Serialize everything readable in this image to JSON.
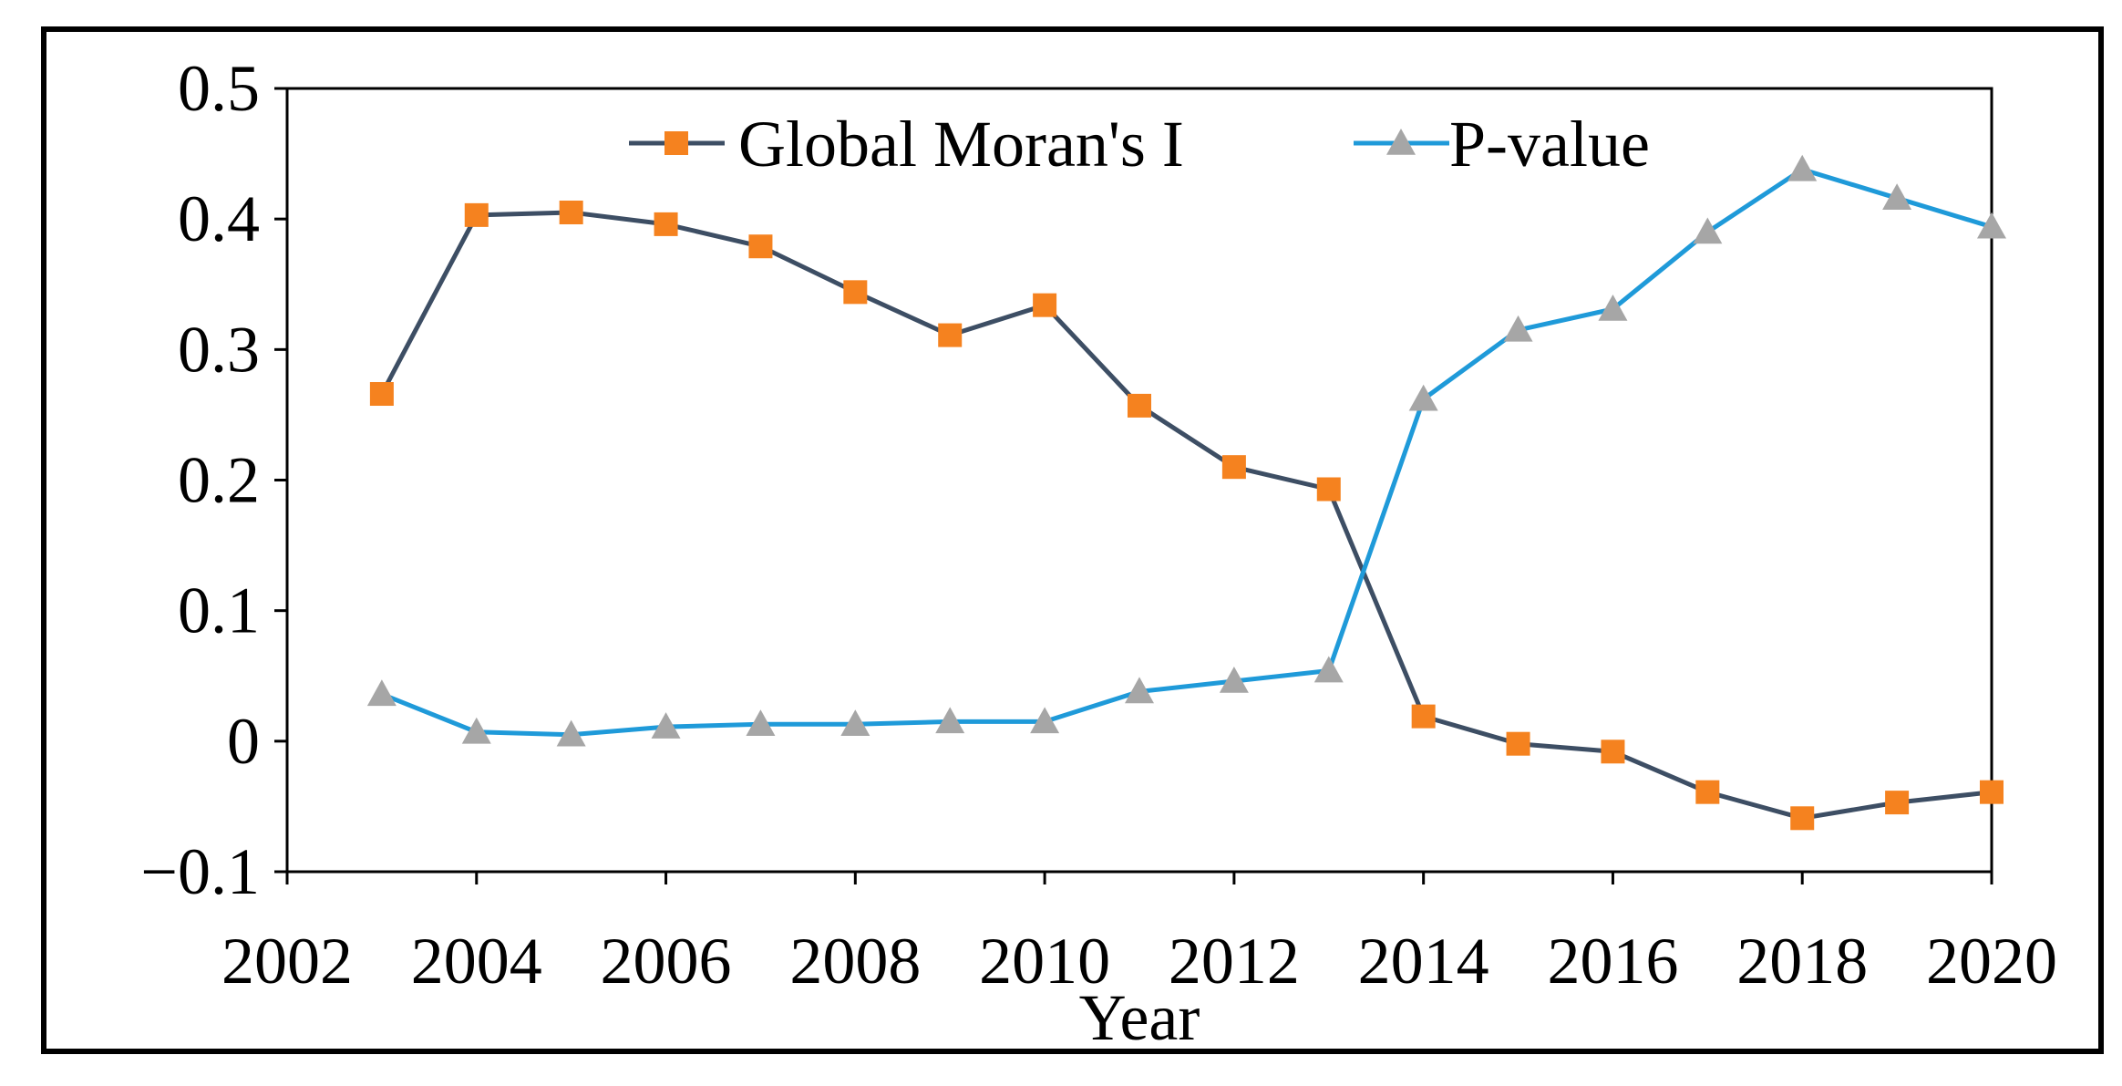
{
  "chart_data": {
    "type": "line",
    "title": "",
    "xlabel": "Year",
    "ylabel": "",
    "xlim": [
      2002,
      2020
    ],
    "ylim": [
      -0.1,
      0.5
    ],
    "x_ticks": [
      2002,
      2004,
      2006,
      2008,
      2010,
      2012,
      2014,
      2016,
      2018,
      2020
    ],
    "x_tick_labels": [
      "2002",
      "2004",
      "2006",
      "2008",
      "2010",
      "2012",
      "2014",
      "2016",
      "2018",
      "2020"
    ],
    "y_ticks": [
      -0.1,
      0,
      0.1,
      0.2,
      0.3,
      0.4,
      0.5
    ],
    "y_tick_labels": [
      "−0.1",
      "0",
      "0.1",
      "0.2",
      "0.3",
      "0.4",
      "0.5"
    ],
    "grid": false,
    "legend_position": "top-center",
    "x": [
      2003,
      2004,
      2005,
      2006,
      2007,
      2008,
      2009,
      2010,
      2011,
      2012,
      2013,
      2014,
      2015,
      2016,
      2017,
      2018,
      2019,
      2020
    ],
    "series": [
      {
        "name": "Global Moran's I",
        "marker": "square",
        "line_color": "#3d4e64",
        "marker_color": "#f5821f",
        "values": [
          0.266,
          0.403,
          0.405,
          0.396,
          0.379,
          0.344,
          0.311,
          0.334,
          0.257,
          0.21,
          0.193,
          0.019,
          -0.002,
          -0.008,
          -0.039,
          -0.059,
          -0.047,
          -0.039
        ]
      },
      {
        "name": "P-value",
        "marker": "triangle",
        "line_color": "#1f9ad9",
        "marker_color": "#a6a6a6",
        "values": [
          0.036,
          0.007,
          0.005,
          0.011,
          0.013,
          0.013,
          0.015,
          0.015,
          0.038,
          0.046,
          0.054,
          0.262,
          0.315,
          0.331,
          0.39,
          0.438,
          0.416,
          0.394
        ]
      }
    ]
  }
}
